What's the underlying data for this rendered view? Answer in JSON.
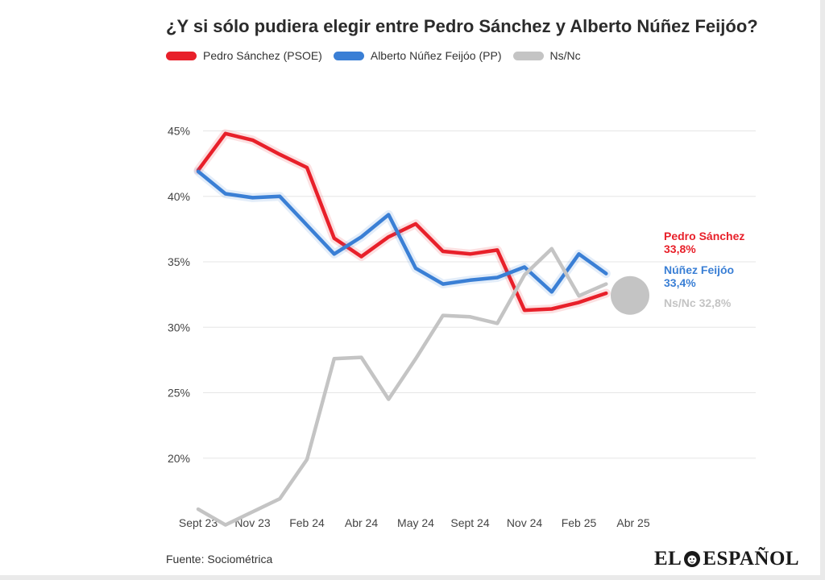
{
  "title": "¿Y si sólo pudiera elegir entre Pedro Sánchez y Alberto Núñez Feijóo?",
  "source": "Fuente: Sociométrica",
  "logo": {
    "left_text": "EL",
    "right_text": "ESPAÑOL",
    "text": "EL ESPAÑOL"
  },
  "colors": {
    "psoe": "#e8202a",
    "pp": "#3a7fd5",
    "nsnc": "#c4c4c4",
    "grid": "#e6e6e6",
    "axis_text": "#444444"
  },
  "legend": [
    {
      "label": "Pedro Sánchez (PSOE)",
      "color": "#e8202a"
    },
    {
      "label": "Alberto Núñez Feijóo (PP)",
      "color": "#3a7fd5"
    },
    {
      "label": "Ns/Nc",
      "color": "#c4c4c4"
    }
  ],
  "chart_data": {
    "type": "line",
    "title": "¿Y si sólo pudiera elegir entre Pedro Sánchez y Alberto Núñez Feijóo?",
    "xlabel": "",
    "ylabel": "",
    "ylim": [
      15,
      47
    ],
    "yticks": [
      "45%",
      "40%",
      "35%",
      "30%",
      "25%",
      "20%"
    ],
    "ytick_values": [
      45,
      40,
      35,
      30,
      25,
      20
    ],
    "xticks": [
      "Sept 23",
      "Nov 23",
      "Feb 24",
      "Abr 24",
      "May 24",
      "Sept 24",
      "Nov 24",
      "Feb 25",
      "Abr 25"
    ],
    "xtick_positions": [
      0,
      2,
      4,
      6,
      8,
      10,
      12,
      14,
      16
    ],
    "x": [
      0,
      1,
      2,
      3,
      4,
      5,
      6,
      7,
      8,
      9,
      10,
      11,
      12,
      13,
      14,
      15
    ],
    "grid": true,
    "legend_position": "top-left",
    "series": [
      {
        "name": "Pedro Sánchez (PSOE)",
        "color": "#e8202a",
        "values": [
          42.0,
          44.8,
          44.3,
          43.2,
          42.2,
          36.8,
          35.4,
          36.9,
          37.9,
          35.8,
          35.6,
          35.9,
          31.3,
          31.4,
          31.9,
          32.6
        ]
      },
      {
        "name": "Alberto Núñez Feijóo (PP)",
        "color": "#3a7fd5",
        "values": [
          41.9,
          40.2,
          39.9,
          40.0,
          37.8,
          35.6,
          36.9,
          38.6,
          34.5,
          33.3,
          33.6,
          33.8,
          34.6,
          32.7,
          35.6,
          34.1
        ]
      },
      {
        "name": "Ns/Nc",
        "color": "#c4c4c4",
        "values": [
          16.1,
          14.9,
          15.9,
          16.9,
          19.9,
          27.6,
          27.7,
          24.5,
          27.6,
          30.9,
          30.8,
          30.3,
          34.0,
          36.0,
          32.4,
          33.3
        ]
      }
    ],
    "end_labels": [
      {
        "name": "Pedro Sánchez",
        "value": "33,8%",
        "color": "#e8202a"
      },
      {
        "name": "Núñez Feijóo",
        "value": "33,4%",
        "color": "#3a7fd5"
      },
      {
        "text": "Ns/Nc 32,8%",
        "color": "#c4c4c4"
      }
    ]
  }
}
